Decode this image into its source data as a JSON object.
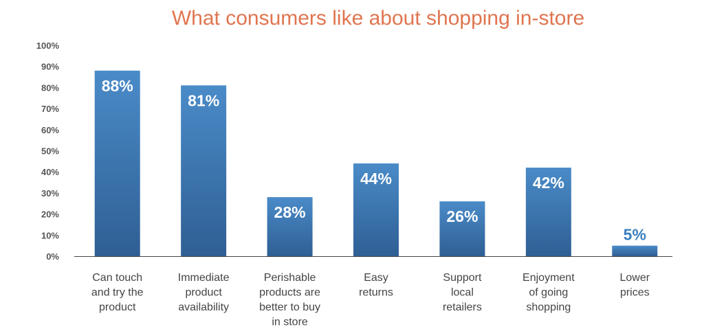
{
  "chart_data": {
    "type": "bar",
    "title": "What consumers like about shopping in-store",
    "xlabel": "",
    "ylabel": "",
    "ylim": [
      0,
      100
    ],
    "yticks": [
      "0%",
      "10%",
      "20%",
      "30%",
      "40%",
      "50%",
      "60%",
      "70%",
      "80%",
      "90%",
      "100%"
    ],
    "grid": false,
    "categories": [
      [
        "Can touch",
        "and try the",
        "product"
      ],
      [
        "Immediate",
        "product",
        "availability"
      ],
      [
        "Perishable",
        "products are",
        "better to buy",
        "in store"
      ],
      [
        "Easy",
        "returns"
      ],
      [
        "Support",
        "local",
        "retailers"
      ],
      [
        "Enjoyment",
        "of going",
        "shopping"
      ],
      [
        "Lower",
        "prices"
      ]
    ],
    "values": [
      88,
      81,
      28,
      44,
      26,
      42,
      5
    ],
    "data_labels": [
      "88%",
      "81%",
      "28%",
      "44%",
      "26%",
      "42%",
      "5%"
    ],
    "colors": {
      "title": "#E07550",
      "bar_top": "#4A8BC8",
      "bar_bottom": "#2F5F94",
      "label_inside": "#FFFFFF",
      "label_outside": "#3B7FC0",
      "axis": "#444444"
    }
  }
}
